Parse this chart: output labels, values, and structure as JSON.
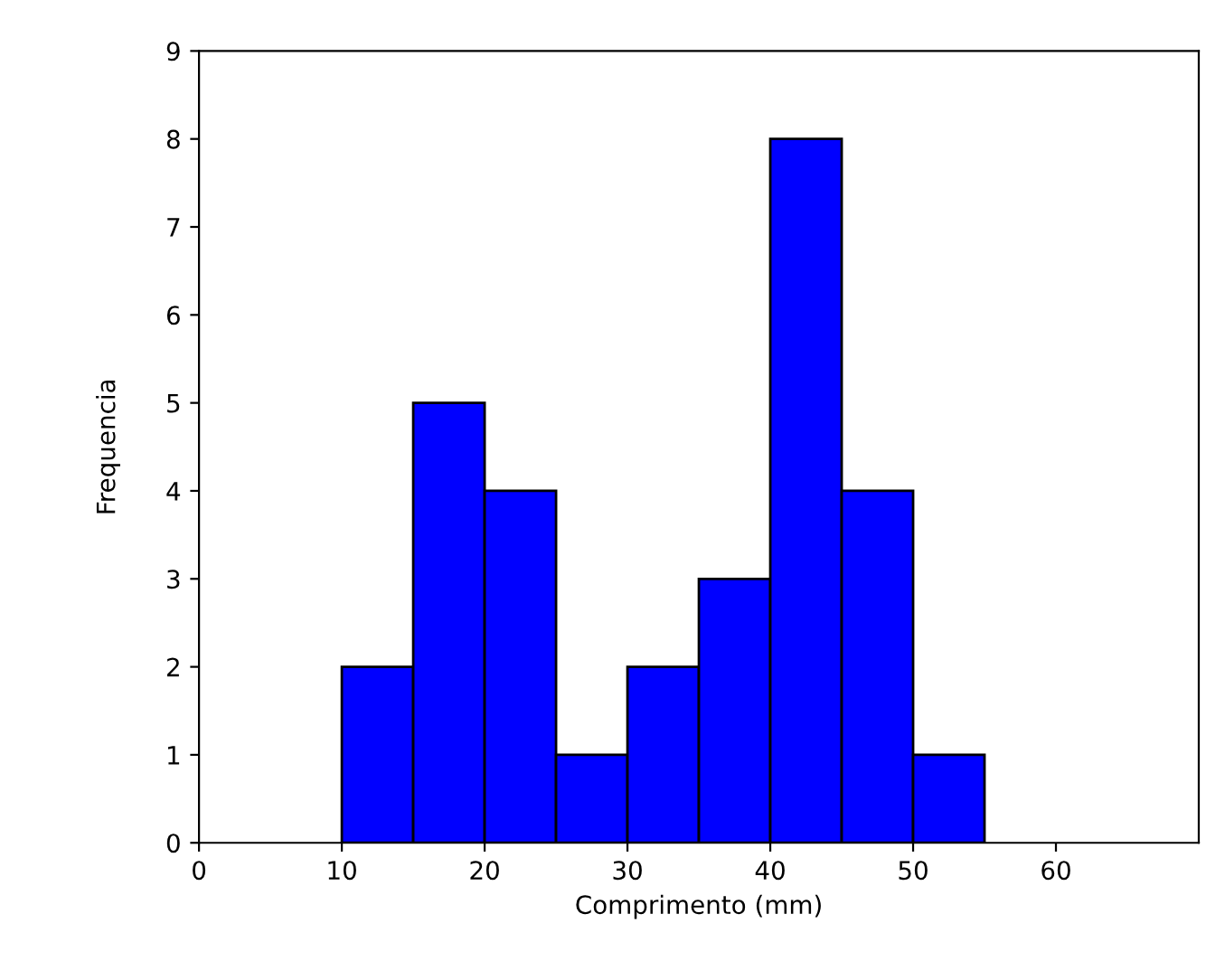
{
  "chart_data": {
    "type": "histogram",
    "xlabel": "Comprimento (mm)",
    "ylabel": "Frequencia",
    "bins": [
      10,
      15,
      20,
      25,
      30,
      35,
      40,
      45,
      50,
      55
    ],
    "values": [
      2,
      5,
      4,
      1,
      2,
      3,
      8,
      4,
      1
    ],
    "color": "#0000ff",
    "xlim": [
      0,
      70
    ],
    "xticks": [
      0,
      10,
      20,
      30,
      40,
      50,
      60
    ],
    "ylim": [
      0,
      9
    ],
    "yticks": [
      0,
      1,
      2,
      3,
      4,
      5,
      6,
      7,
      8,
      9
    ],
    "grid": false,
    "legend": false
  }
}
